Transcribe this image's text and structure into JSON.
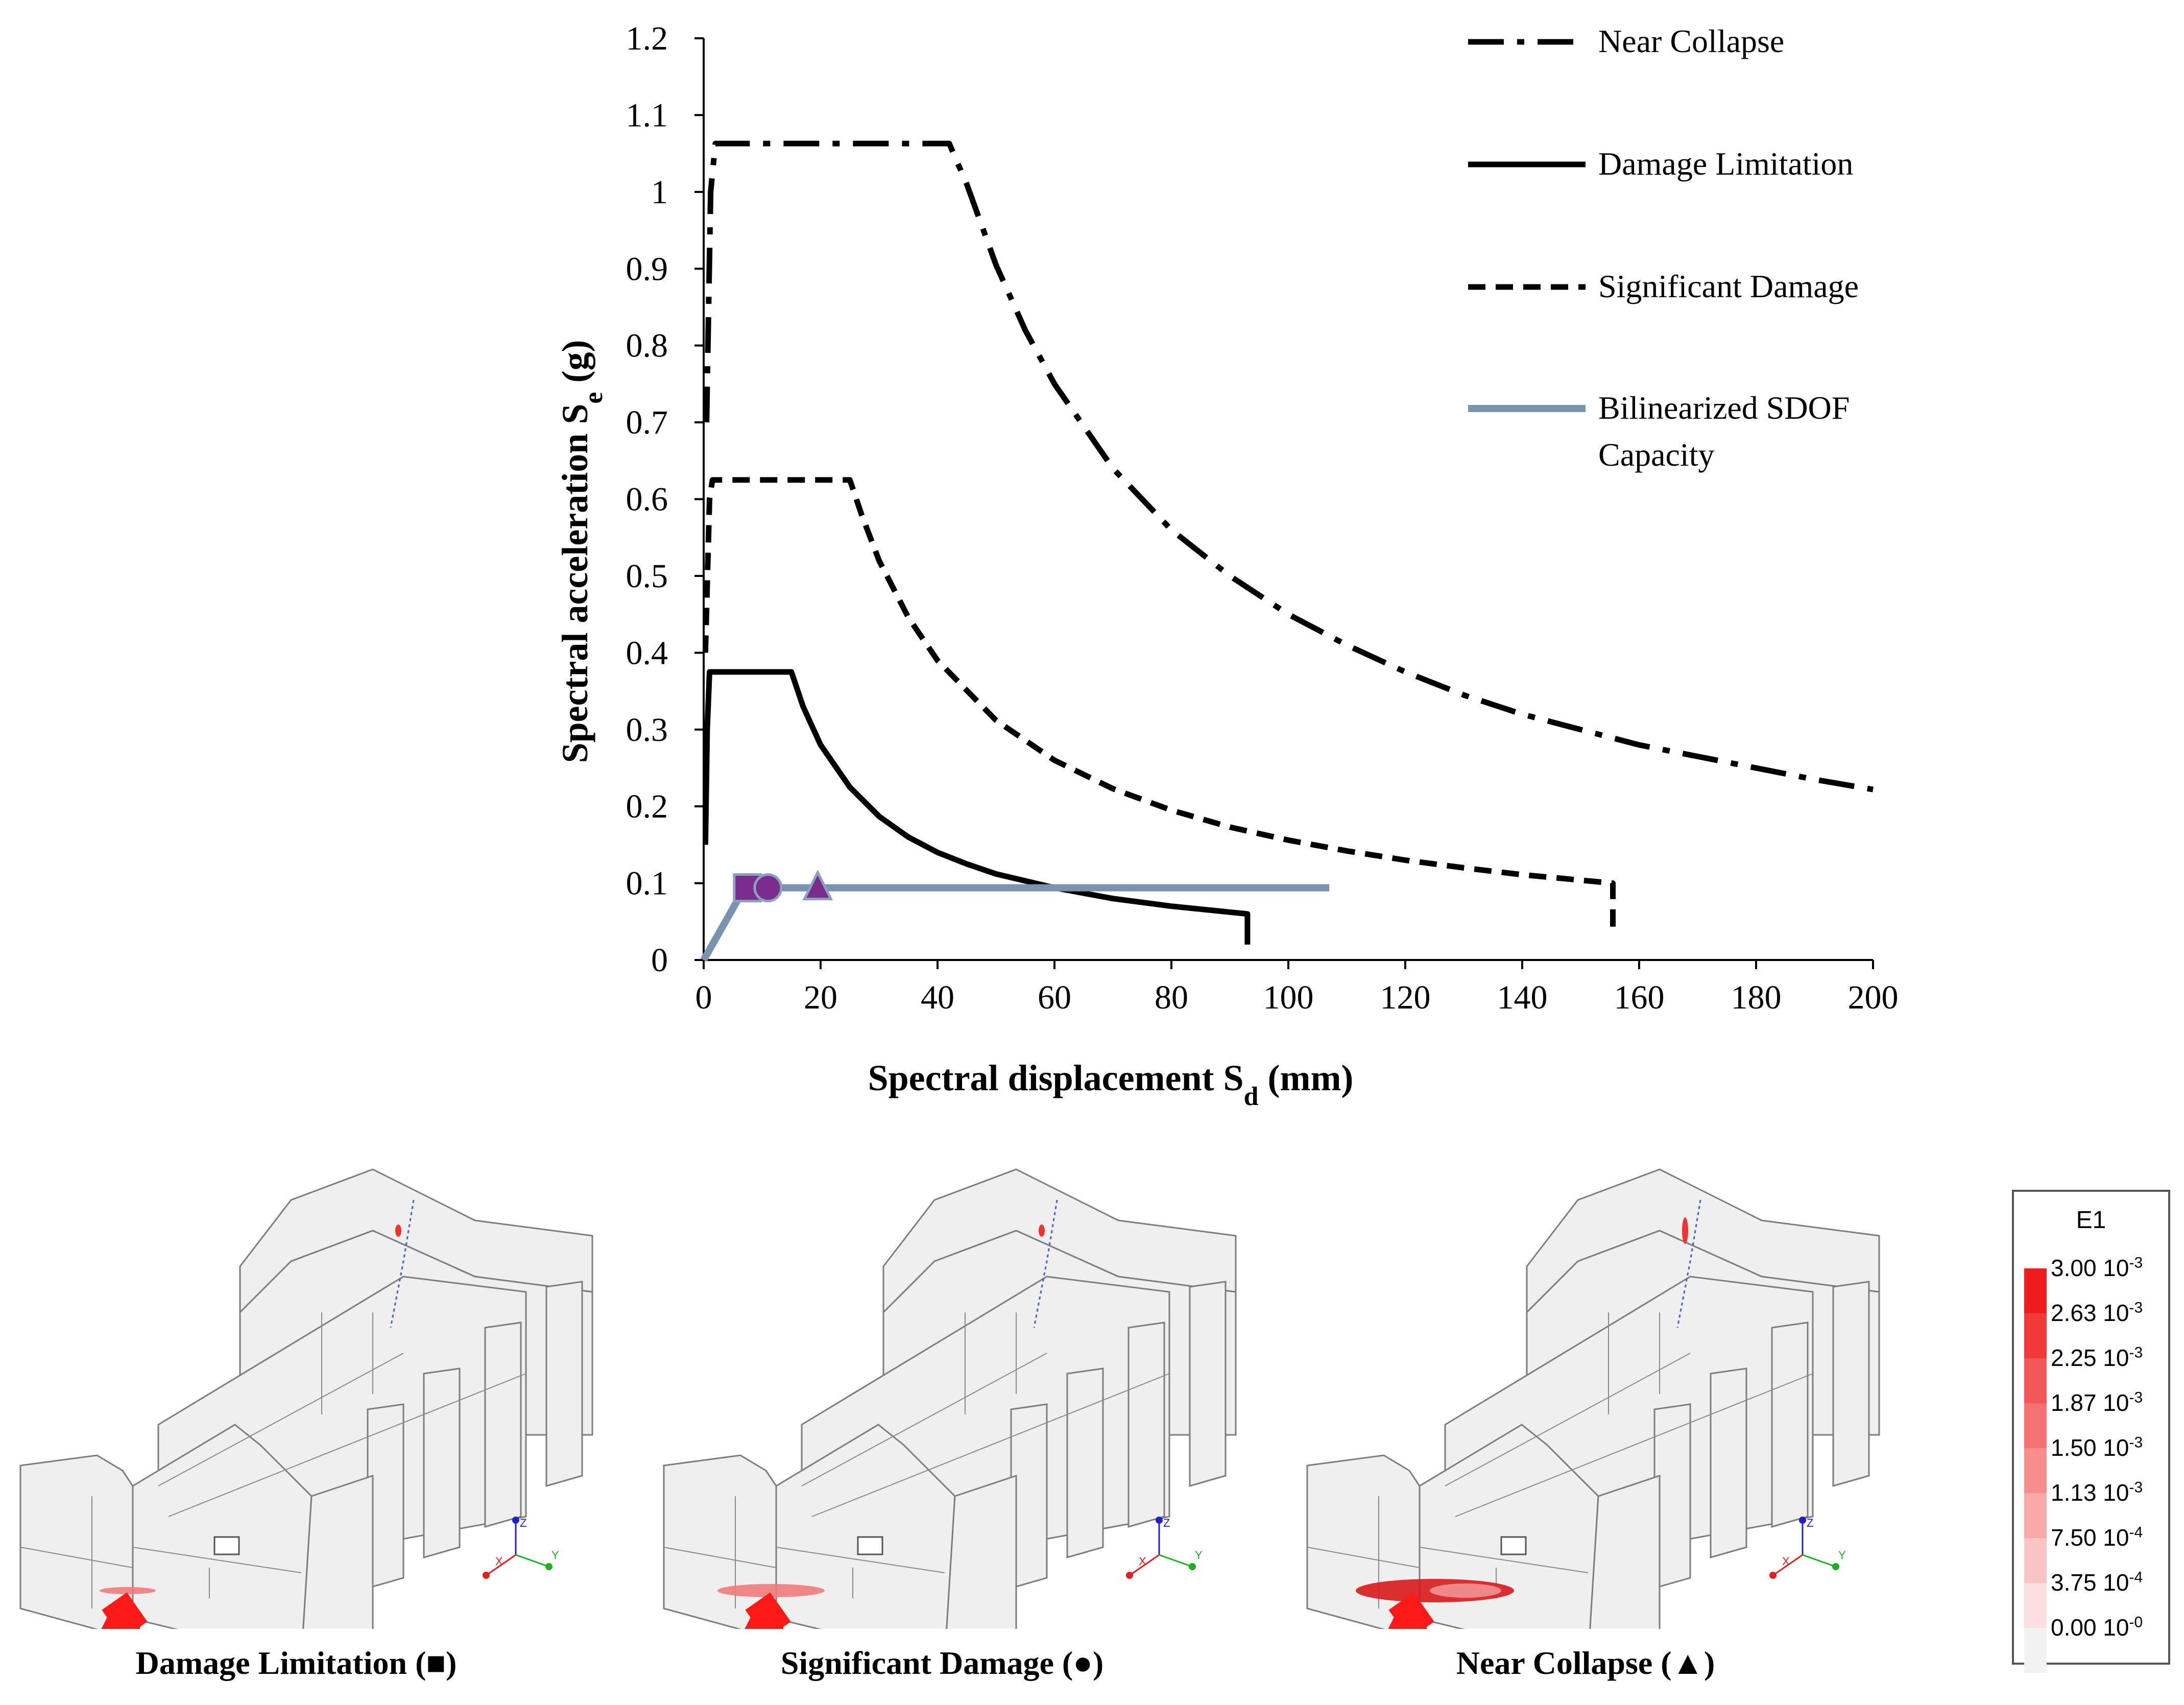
{
  "chart_data": {
    "type": "line",
    "xlabel": "Spectral displacement S_d (mm)",
    "xlabel_main": "Spectral displacement S",
    "xlabel_sub": "d",
    "xlabel_tail": " (mm)",
    "ylabel_main": "Spectral acceleration S",
    "ylabel_sub": "e",
    "ylabel_tail": " (g)",
    "xlim": [
      0,
      200
    ],
    "ylim": [
      0,
      1.2
    ],
    "x_ticks": [
      "0",
      "20",
      "40",
      "60",
      "80",
      "100",
      "120",
      "140",
      "160",
      "180",
      "200"
    ],
    "y_ticks": [
      "0",
      "0.1",
      "0.2",
      "0.3",
      "0.4",
      "0.5",
      "0.6",
      "0.7",
      "0.8",
      "0.9",
      "1",
      "1.1",
      "1.2"
    ],
    "grid": false,
    "legend_position": "top-right",
    "series": [
      {
        "name": "Near Collapse",
        "style": "dashdot",
        "color": "#000000",
        "points": [
          [
            0.5,
            0.7
          ],
          [
            1.2,
            1.0
          ],
          [
            2.0,
            1.063
          ],
          [
            42.0,
            1.063
          ],
          [
            45,
            1.01
          ],
          [
            50,
            0.905
          ],
          [
            55,
            0.82
          ],
          [
            60,
            0.75
          ],
          [
            70,
            0.64
          ],
          [
            80,
            0.56
          ],
          [
            90,
            0.5
          ],
          [
            100,
            0.45
          ],
          [
            110,
            0.41
          ],
          [
            120,
            0.375
          ],
          [
            130,
            0.345
          ],
          [
            140,
            0.32
          ],
          [
            150,
            0.3
          ],
          [
            160,
            0.28
          ],
          [
            170,
            0.265
          ],
          [
            180,
            0.25
          ],
          [
            190,
            0.235
          ],
          [
            200,
            0.222
          ]
        ]
      },
      {
        "name": "Damage Limitation",
        "style": "solid",
        "color": "#000000",
        "points": [
          [
            0.3,
            0.15
          ],
          [
            0.6,
            0.3
          ],
          [
            1.0,
            0.375
          ],
          [
            15.0,
            0.375
          ],
          [
            17,
            0.33
          ],
          [
            20,
            0.28
          ],
          [
            25,
            0.225
          ],
          [
            30,
            0.187
          ],
          [
            35,
            0.16
          ],
          [
            40,
            0.14
          ],
          [
            45,
            0.125
          ],
          [
            50,
            0.112
          ],
          [
            60,
            0.094
          ],
          [
            70,
            0.08
          ],
          [
            80,
            0.07
          ],
          [
            93,
            0.06
          ],
          [
            93,
            0.02
          ]
        ]
      },
      {
        "name": "Significant Damage",
        "style": "dashed",
        "color": "#000000",
        "points": [
          [
            0.3,
            0.4
          ],
          [
            1.0,
            0.6
          ],
          [
            1.5,
            0.625
          ],
          [
            25.0,
            0.625
          ],
          [
            27,
            0.58
          ],
          [
            30,
            0.52
          ],
          [
            35,
            0.446
          ],
          [
            40,
            0.39
          ],
          [
            50,
            0.312
          ],
          [
            60,
            0.26
          ],
          [
            70,
            0.223
          ],
          [
            80,
            0.195
          ],
          [
            90,
            0.173
          ],
          [
            100,
            0.156
          ],
          [
            110,
            0.142
          ],
          [
            120,
            0.13
          ],
          [
            130,
            0.12
          ],
          [
            140,
            0.111
          ],
          [
            155.5,
            0.1
          ],
          [
            155.5,
            0.035
          ]
        ]
      },
      {
        "name": "Bilinearized SDOF Capacity",
        "style": "solid",
        "color": "#7a94b0",
        "points": [
          [
            0,
            0
          ],
          [
            7,
            0.094
          ],
          [
            107,
            0.094
          ]
        ]
      }
    ],
    "markers": [
      {
        "name": "Damage Limitation",
        "shape": "square",
        "x": 7.5,
        "y": 0.094,
        "color": "#7b2d8e"
      },
      {
        "name": "Significant Damage",
        "shape": "circle",
        "x": 11,
        "y": 0.094,
        "color": "#7b2d8e"
      },
      {
        "name": "Near Collapse",
        "shape": "triangle",
        "x": 19.5,
        "y": 0.094,
        "color": "#7b2d8e"
      }
    ],
    "legend_lines": [
      [
        "Near Collapse"
      ],
      [
        "Damage Limitation"
      ],
      [
        "Significant Damage"
      ],
      [
        "Bilinearized SDOF",
        "Capacity"
      ]
    ]
  },
  "panels": [
    {
      "caption_text": "Damage Limitation (",
      "caption_symbol": "■",
      "caption_close": ")",
      "damage_level": 1
    },
    {
      "caption_text": "Significant Damage (",
      "caption_symbol": "●",
      "caption_close": ")",
      "damage_level": 2
    },
    {
      "caption_text": "Near Collapse (",
      "caption_symbol": "▲",
      "caption_close": ")",
      "damage_level": 3
    }
  ],
  "axes_triad": {
    "x_label": "X",
    "y_label": "Y",
    "z_label": "Z"
  },
  "scale": {
    "title": "E1",
    "entries": [
      {
        "label": "3.00 10",
        "exp": "-3",
        "color": "#ee1c1c"
      },
      {
        "label": "2.63 10",
        "exp": "-3",
        "color": "#f03a3a"
      },
      {
        "label": "2.25 10",
        "exp": "-3",
        "color": "#f25656"
      },
      {
        "label": "1.87 10",
        "exp": "-3",
        "color": "#f47272"
      },
      {
        "label": "1.50 10",
        "exp": "-3",
        "color": "#f68e8e"
      },
      {
        "label": "1.13 10",
        "exp": "-3",
        "color": "#f8a8a8"
      },
      {
        "label": "7.50 10",
        "exp": "-4",
        "color": "#fac4c4"
      },
      {
        "label": "3.75 10",
        "exp": "-4",
        "color": "#fcdede"
      },
      {
        "label": "0.00 10",
        "exp": "-0",
        "color": "#f2f2f2"
      }
    ]
  }
}
